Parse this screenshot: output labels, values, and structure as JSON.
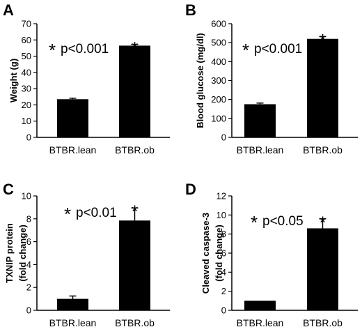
{
  "chart_data": [
    {
      "panel": "A",
      "type": "bar",
      "categories": [
        "BTBR.lean",
        "BTBR.ob"
      ],
      "values": [
        23.5,
        56.5
      ],
      "errors": [
        0.6,
        0.8
      ],
      "ylabel": "Weight (g)",
      "ylabel2": "",
      "ylim": [
        0,
        70
      ],
      "yticks": [
        "0",
        "10",
        "20",
        "30",
        "40",
        "50",
        "60",
        "70"
      ],
      "annotation": "p<0.001",
      "bar_star": "*",
      "grid": false
    },
    {
      "panel": "B",
      "type": "bar",
      "categories": [
        "BTBR.lean",
        "BTBR.ob"
      ],
      "values": [
        175,
        520
      ],
      "errors": [
        6,
        12
      ],
      "ylabel": "Blood glucose (mg/dl)",
      "ylabel2": "",
      "ylim": [
        0,
        600
      ],
      "yticks": [
        "0",
        "100",
        "200",
        "300",
        "400",
        "500",
        "600"
      ],
      "annotation": "p<0.001",
      "bar_star": "*",
      "grid": false
    },
    {
      "panel": "C",
      "type": "bar",
      "categories": [
        "BTBR.lean",
        "BTBR.ob"
      ],
      "values": [
        1.0,
        7.85
      ],
      "errors": [
        0.25,
        1.1
      ],
      "ylabel": "TXNIP protein",
      "ylabel2": "(fold change)",
      "ylim": [
        0,
        10
      ],
      "yticks": [
        "0",
        "2",
        "4",
        "6",
        "8",
        "10"
      ],
      "annotation": "p<0.01",
      "bar_star": "*",
      "grid": false
    },
    {
      "panel": "D",
      "type": "bar",
      "categories": [
        "BTBR.lean",
        "BTBR.ob"
      ],
      "values": [
        1.0,
        8.6
      ],
      "errors": [
        0.0,
        1.0
      ],
      "ylabel": "Cleaved caspase-3",
      "ylabel2": "(fold change)",
      "ylim": [
        0,
        12
      ],
      "yticks": [
        "0",
        "2",
        "4",
        "6",
        "8",
        "10",
        "12"
      ],
      "annotation": "p<0.05",
      "bar_star": "*",
      "grid": false
    }
  ],
  "colors": {
    "bar": "#000000",
    "axis": "#000000",
    "background": "#ffffff"
  }
}
